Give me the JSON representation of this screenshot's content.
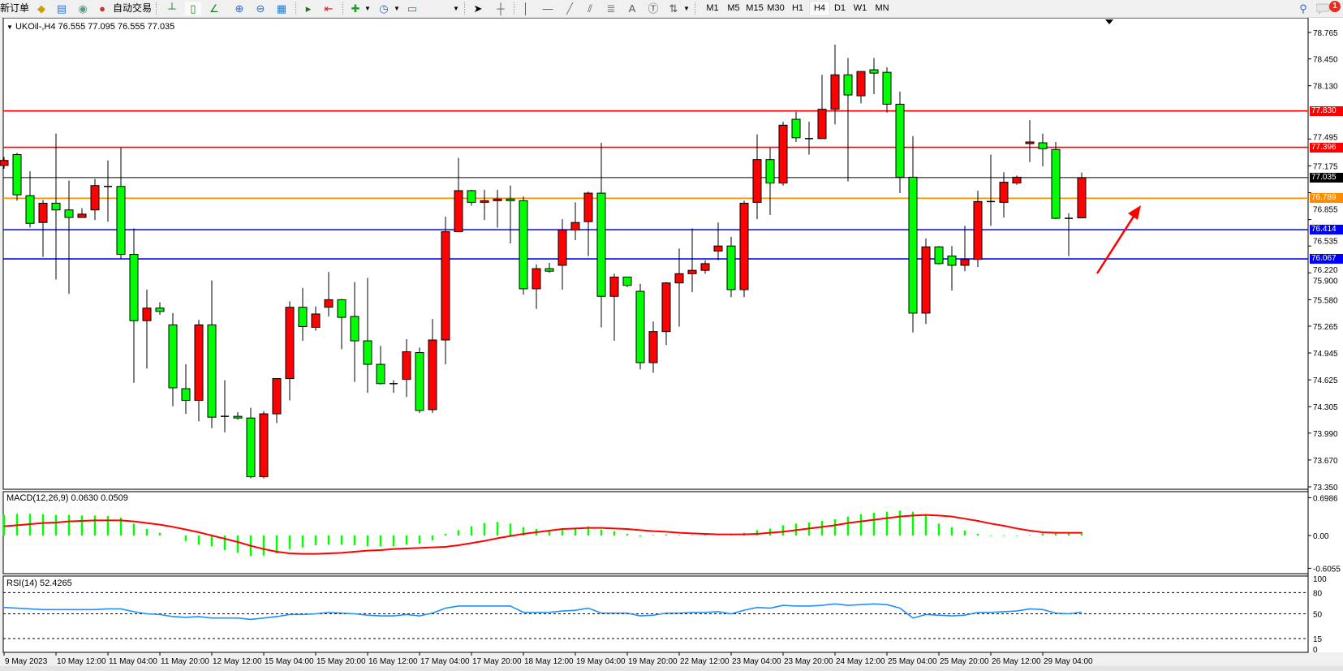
{
  "toolbar": {
    "new_order": "新订单",
    "auto_trading": "自动交易",
    "timeframes": [
      "M1",
      "M5",
      "M15",
      "M30",
      "H1",
      "H4",
      "D1",
      "W1",
      "MN"
    ],
    "active_timeframe": "H4",
    "notification_count": "1",
    "icons": [
      "gold-ingot-icon",
      "terminal-icon",
      "signal-icon",
      "auto-trading-icon",
      "bar-chart-icon",
      "candlestick-icon",
      "line-chart-icon",
      "zoom-in-icon",
      "zoom-out-icon",
      "tile-windows-icon",
      "auto-scroll-icon",
      "chart-shift-icon",
      "template-icon",
      "period-clock-icon",
      "indicators-icon",
      "cursor-icon",
      "crosshair-icon",
      "vertical-line-icon",
      "horizontal-line-icon",
      "trend-line-icon",
      "equidistant-channel-icon",
      "fibonacci-icon",
      "text-icon",
      "text-label-icon",
      "arrows-icon",
      "search-icon",
      "chat-icon"
    ]
  },
  "chart": {
    "header": "UKOil-,H4  76.555 77.095 76.555 77.035",
    "macd_label": "MACD(12,26,9) 0.0630 0.0509",
    "rsi_label": "RSI(14) 52.4265"
  },
  "chart_data": {
    "type": "candlestick",
    "symbol": "UKOil-",
    "timeframe": "H4",
    "colors": {
      "up": "#ff0000",
      "down": "#00ff00",
      "wick": "#000000",
      "background": "#ffffff"
    },
    "ylim": [
      73.35,
      78.765
    ],
    "y_ticks": [
      "78.765",
      "78.450",
      "78.130",
      "77.495",
      "77.175",
      "76.855",
      "76.535",
      "76.220",
      "75.900",
      "75.580",
      "75.265",
      "74.945",
      "74.625",
      "74.305",
      "73.990",
      "73.670",
      "73.350"
    ],
    "x_tick_labels": [
      "9 May 2023",
      "10 May 12:00",
      "11 May 04:00",
      "11 May 20:00",
      "12 May 12:00",
      "15 May 04:00",
      "15 May 20:00",
      "16 May 12:00",
      "17 May 04:00",
      "17 May 20:00",
      "18 May 12:00",
      "19 May 04:00",
      "19 May 20:00",
      "22 May 12:00",
      "23 May 04:00",
      "23 May 20:00",
      "24 May 12:00",
      "25 May 04:00",
      "25 May 20:00",
      "26 May 12:00",
      "29 May 04:00"
    ],
    "ohlc": [
      [
        77.18,
        77.28,
        77.14,
        77.24
      ],
      [
        77.31,
        77.33,
        76.76,
        76.83
      ],
      [
        76.82,
        77.11,
        76.44,
        76.49
      ],
      [
        76.5,
        76.77,
        76.09,
        76.73
      ],
      [
        76.73,
        77.56,
        75.82,
        76.65
      ],
      [
        76.65,
        77.0,
        75.65,
        76.56
      ],
      [
        76.56,
        76.67,
        76.56,
        76.6
      ],
      [
        76.65,
        77.02,
        76.53,
        76.94
      ],
      [
        76.93,
        77.24,
        76.51,
        76.93
      ],
      [
        76.93,
        77.39,
        76.07,
        76.12
      ],
      [
        76.12,
        76.43,
        74.59,
        75.33
      ],
      [
        75.33,
        75.7,
        74.76,
        75.48
      ],
      [
        75.48,
        75.55,
        75.4,
        75.44
      ],
      [
        75.28,
        75.42,
        74.31,
        74.53
      ],
      [
        74.52,
        74.81,
        74.22,
        74.38
      ],
      [
        74.38,
        75.34,
        74.13,
        75.28
      ],
      [
        75.28,
        75.81,
        74.05,
        74.18
      ],
      [
        74.19,
        74.62,
        74.0,
        74.19
      ],
      [
        74.19,
        74.24,
        74.15,
        74.17
      ],
      [
        74.17,
        74.29,
        73.45,
        73.47
      ],
      [
        73.47,
        74.25,
        73.45,
        74.22
      ],
      [
        74.22,
        74.64,
        74.11,
        74.64
      ],
      [
        74.64,
        75.56,
        74.38,
        75.49
      ],
      [
        75.49,
        75.72,
        75.09,
        75.26
      ],
      [
        75.25,
        75.5,
        75.21,
        75.41
      ],
      [
        75.49,
        75.91,
        75.38,
        75.58
      ],
      [
        75.58,
        75.59,
        74.99,
        75.37
      ],
      [
        75.38,
        75.79,
        74.6,
        75.09
      ],
      [
        75.09,
        75.84,
        74.47,
        74.81
      ],
      [
        74.81,
        75.03,
        74.57,
        74.58
      ],
      [
        74.58,
        74.62,
        74.47,
        74.58
      ],
      [
        74.63,
        75.11,
        74.42,
        74.96
      ],
      [
        74.95,
        75.01,
        74.23,
        74.26
      ],
      [
        74.27,
        75.35,
        74.23,
        75.1
      ],
      [
        75.1,
        76.57,
        74.81,
        76.39
      ],
      [
        76.39,
        77.27,
        76.39,
        76.88
      ],
      [
        76.88,
        76.89,
        76.7,
        76.74
      ],
      [
        76.74,
        76.89,
        76.53,
        76.76
      ],
      [
        76.76,
        76.89,
        76.44,
        76.78
      ],
      [
        76.78,
        76.94,
        76.25,
        76.76
      ],
      [
        76.76,
        76.81,
        75.64,
        75.71
      ],
      [
        75.71,
        76.0,
        75.47,
        75.95
      ],
      [
        75.95,
        76.02,
        75.9,
        75.92
      ],
      [
        75.99,
        76.54,
        75.7,
        76.41
      ],
      [
        76.41,
        76.74,
        76.29,
        76.5
      ],
      [
        76.51,
        76.87,
        76.1,
        76.85
      ],
      [
        76.85,
        77.45,
        75.25,
        75.62
      ],
      [
        75.62,
        75.89,
        75.09,
        75.85
      ],
      [
        75.85,
        75.85,
        75.73,
        75.75
      ],
      [
        75.68,
        75.77,
        74.75,
        74.83
      ],
      [
        74.83,
        75.32,
        74.71,
        75.2
      ],
      [
        75.2,
        75.79,
        75.04,
        75.78
      ],
      [
        75.78,
        76.19,
        75.26,
        75.89
      ],
      [
        75.89,
        76.43,
        75.67,
        75.93
      ],
      [
        75.93,
        76.05,
        75.89,
        76.01
      ],
      [
        76.16,
        76.5,
        76.05,
        76.22
      ],
      [
        76.22,
        76.33,
        75.61,
        75.7
      ],
      [
        75.7,
        76.76,
        75.61,
        76.73
      ],
      [
        76.74,
        77.55,
        76.54,
        77.25
      ],
      [
        77.25,
        77.39,
        76.59,
        76.97
      ],
      [
        76.97,
        77.7,
        76.94,
        77.66
      ],
      [
        77.73,
        77.82,
        77.46,
        77.51
      ],
      [
        77.5,
        77.7,
        77.31,
        77.5
      ],
      [
        77.5,
        78.26,
        77.5,
        77.85
      ],
      [
        77.85,
        78.62,
        77.67,
        78.26
      ],
      [
        78.26,
        78.46,
        76.99,
        78.02
      ],
      [
        78.01,
        78.3,
        77.92,
        78.3
      ],
      [
        78.32,
        78.46,
        78.03,
        78.28
      ],
      [
        78.29,
        78.35,
        77.81,
        77.91
      ],
      [
        77.91,
        78.06,
        76.85,
        77.04
      ],
      [
        77.04,
        77.53,
        75.19,
        75.42
      ],
      [
        75.42,
        76.31,
        75.29,
        76.21
      ],
      [
        76.21,
        76.22,
        76.0,
        76.01
      ],
      [
        76.1,
        76.22,
        75.69,
        75.99
      ],
      [
        75.99,
        76.46,
        75.92,
        76.06
      ],
      [
        76.06,
        76.88,
        75.97,
        76.75
      ],
      [
        76.75,
        77.31,
        76.46,
        76.74
      ],
      [
        76.74,
        77.1,
        76.56,
        76.98
      ],
      [
        76.97,
        77.06,
        76.95,
        77.04
      ],
      [
        77.44,
        77.72,
        77.22,
        77.46
      ],
      [
        77.45,
        77.56,
        77.17,
        77.38
      ],
      [
        77.37,
        77.46,
        76.54,
        76.55
      ],
      [
        76.55,
        76.61,
        76.1,
        76.55
      ],
      [
        76.555,
        77.095,
        76.555,
        77.035
      ]
    ],
    "horizontal_lines": [
      {
        "price": "77.830",
        "color": "#ff0000"
      },
      {
        "price": "77.396",
        "color": "#ff0000"
      },
      {
        "price": "77.035",
        "color": "#000000"
      },
      {
        "price": "76.789",
        "color": "#ff8c00"
      },
      {
        "price": "76.414",
        "color": "#0000ff"
      },
      {
        "price": "76.067",
        "color": "#0000ff"
      }
    ],
    "annotation": {
      "type": "arrow",
      "color": "#ff0000",
      "direction": "up-right"
    },
    "macd": {
      "ylim": [
        -0.6055,
        0.6986
      ],
      "y_ticks": [
        "0.6986",
        "0.00",
        "-0.6055"
      ],
      "histogram_color": "#00ff00",
      "signal_color": "#ff0000",
      "main": [
        0.38,
        0.4,
        0.4,
        0.39,
        0.38,
        0.38,
        0.37,
        0.37,
        0.36,
        0.33,
        0.22,
        0.12,
        0.05,
        0.0,
        -0.1,
        -0.17,
        -0.2,
        -0.27,
        -0.32,
        -0.38,
        -0.37,
        -0.33,
        -0.25,
        -0.22,
        -0.18,
        -0.17,
        -0.17,
        -0.18,
        -0.2,
        -0.2,
        -0.2,
        -0.17,
        -0.15,
        -0.09,
        0.03,
        0.1,
        0.17,
        0.23,
        0.25,
        0.22,
        0.15,
        0.12,
        0.1,
        0.1,
        0.12,
        0.17,
        0.11,
        0.08,
        0.03,
        -0.02,
        0.01,
        0.02,
        0.01,
        0.01,
        0.02,
        0.02,
        0.02,
        0.05,
        0.1,
        0.13,
        0.19,
        0.22,
        0.24,
        0.27,
        0.3,
        0.35,
        0.39,
        0.42,
        0.44,
        0.46,
        0.44,
        0.37,
        0.22,
        0.15,
        0.09,
        0.03,
        -0.01,
        -0.01,
        -0.01,
        0.01,
        0.04,
        0.06,
        0.05,
        0.063
      ],
      "signal": [
        0.17,
        0.19,
        0.21,
        0.23,
        0.24,
        0.26,
        0.27,
        0.28,
        0.28,
        0.28,
        0.26,
        0.23,
        0.2,
        0.16,
        0.11,
        0.06,
        0.0,
        -0.06,
        -0.12,
        -0.19,
        -0.25,
        -0.3,
        -0.33,
        -0.34,
        -0.34,
        -0.33,
        -0.32,
        -0.3,
        -0.28,
        -0.27,
        -0.25,
        -0.24,
        -0.23,
        -0.22,
        -0.21,
        -0.18,
        -0.14,
        -0.1,
        -0.05,
        -0.01,
        0.03,
        0.06,
        0.09,
        0.12,
        0.13,
        0.14,
        0.14,
        0.13,
        0.12,
        0.1,
        0.08,
        0.07,
        0.05,
        0.04,
        0.03,
        0.02,
        0.02,
        0.02,
        0.03,
        0.05,
        0.07,
        0.1,
        0.13,
        0.16,
        0.19,
        0.23,
        0.26,
        0.29,
        0.32,
        0.35,
        0.37,
        0.38,
        0.37,
        0.35,
        0.31,
        0.27,
        0.22,
        0.18,
        0.13,
        0.09,
        0.06,
        0.05,
        0.05,
        0.0509
      ]
    },
    "rsi": {
      "ylim": [
        0,
        100
      ],
      "y_ticks": [
        "100",
        "80",
        "50",
        "15",
        "0"
      ],
      "levels": [
        80,
        50,
        15
      ],
      "color": "#1e90ff",
      "values": [
        59,
        58,
        57,
        56,
        56,
        56,
        56,
        56,
        57,
        57,
        53,
        50,
        49,
        46,
        45,
        46,
        44,
        44,
        44,
        42,
        44,
        46,
        49,
        49,
        50,
        52,
        51,
        50,
        48,
        47,
        47,
        49,
        47,
        51,
        58,
        61,
        61,
        61,
        61,
        61,
        52,
        52,
        52,
        54,
        55,
        58,
        51,
        51,
        51,
        47,
        48,
        51,
        51,
        52,
        52,
        53,
        50,
        55,
        59,
        58,
        62,
        61,
        61,
        62,
        64,
        62,
        63,
        64,
        63,
        58,
        44,
        49,
        48,
        47,
        48,
        52,
        52,
        53,
        54,
        57,
        56,
        51,
        50,
        52.4265
      ]
    }
  }
}
